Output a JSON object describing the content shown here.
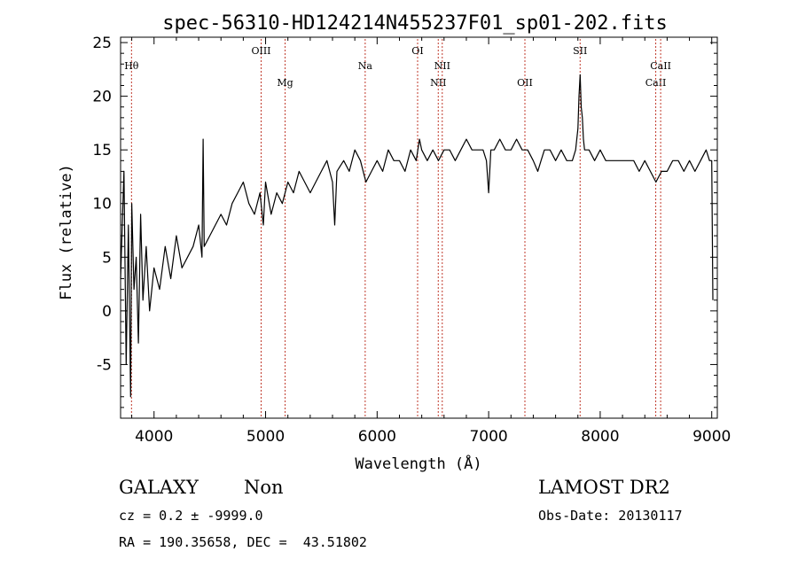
{
  "chart_data": {
    "type": "line",
    "title": "spec-56310-HD124214N455237F01_sp01-202.fits",
    "xlabel": "Wavelength (Å)",
    "ylabel": "Flux (relative)",
    "xlim": [
      3700,
      9050
    ],
    "ylim": [
      -10,
      25.5
    ],
    "xticks": [
      4000,
      5000,
      6000,
      7000,
      8000,
      9000
    ],
    "yticks": [
      -5,
      0,
      5,
      10,
      15,
      20,
      25
    ],
    "grid": false,
    "legend": "none",
    "line_color": "#000000",
    "marker_color": "#c0392b",
    "spectral_lines": [
      {
        "label": "Hθ",
        "x": 3798,
        "row": 1
      },
      {
        "label": "OIII",
        "x": 4960,
        "row": 0
      },
      {
        "label": "Mg",
        "x": 5175,
        "row": 2
      },
      {
        "label": "Na",
        "x": 5893,
        "row": 1
      },
      {
        "label": "OI",
        "x": 6363,
        "row": 0
      },
      {
        "label": "NII",
        "x": 6548,
        "row": 2
      },
      {
        "label": "NII",
        "x": 6584,
        "row": 1
      },
      {
        "label": "OII",
        "x": 7325,
        "row": 2
      },
      {
        "label": "SII",
        "x": 7820,
        "row": 0
      },
      {
        "label": "CaII",
        "x": 8498,
        "row": 2
      },
      {
        "label": "CaII",
        "x": 8542,
        "row": 1
      }
    ],
    "series": [
      {
        "x": [
          3700,
          3730,
          3750,
          3770,
          3790,
          3800,
          3820,
          3840,
          3860,
          3880,
          3900,
          3930,
          3960,
          4000,
          4050,
          4100,
          4150,
          4200,
          4250,
          4300,
          4350,
          4400,
          4430,
          4440,
          4450,
          4500,
          4550,
          4600,
          4650,
          4700,
          4750,
          4800,
          4850,
          4900,
          4950,
          4980,
          5000,
          5050,
          5100,
          5150,
          5200,
          5250,
          5300,
          5350,
          5400,
          5450,
          5500,
          5550,
          5600,
          5620,
          5640,
          5700,
          5750,
          5800,
          5850,
          5900,
          5950,
          6000,
          6050,
          6100,
          6150,
          6200,
          6250,
          6300,
          6350,
          6380,
          6400,
          6450,
          6500,
          6550,
          6600,
          6650,
          6700,
          6750,
          6800,
          6850,
          6900,
          6950,
          6980,
          7000,
          7020,
          7050,
          7100,
          7150,
          7200,
          7250,
          7300,
          7350,
          7400,
          7440,
          7470,
          7500,
          7550,
          7600,
          7650,
          7700,
          7750,
          7780,
          7800,
          7810,
          7820,
          7830,
          7840,
          7850,
          7860,
          7900,
          7950,
          8000,
          8050,
          8100,
          8150,
          8200,
          8250,
          8300,
          8350,
          8400,
          8450,
          8500,
          8550,
          8600,
          8650,
          8700,
          8750,
          8800,
          8850,
          8900,
          8950,
          8980,
          9000,
          9010
        ],
        "y": [
          3,
          13,
          -5,
          8,
          -8,
          10,
          2,
          5,
          -3,
          9,
          1,
          6,
          0,
          4,
          2,
          6,
          3,
          7,
          4,
          5,
          6,
          8,
          5,
          16,
          6,
          7,
          8,
          9,
          8,
          10,
          11,
          12,
          10,
          9,
          11,
          8,
          12,
          9,
          11,
          10,
          12,
          11,
          13,
          12,
          11,
          12,
          13,
          14,
          12,
          8,
          13,
          14,
          13,
          15,
          14,
          12,
          13,
          14,
          13,
          15,
          14,
          14,
          13,
          15,
          14,
          16,
          15,
          14,
          15,
          14,
          15,
          15,
          14,
          15,
          16,
          15,
          15,
          15,
          14,
          11,
          15,
          15,
          16,
          15,
          15,
          16,
          15,
          15,
          14,
          13,
          14,
          15,
          15,
          14,
          15,
          14,
          14,
          15,
          17,
          20,
          22,
          19,
          18,
          16,
          15,
          15,
          14,
          15,
          14,
          14,
          14,
          14,
          14,
          14,
          13,
          14,
          13,
          12,
          13,
          13,
          14,
          14,
          13,
          14,
          13,
          14,
          15,
          14,
          14,
          1
        ]
      }
    ]
  },
  "info": {
    "obj_class": "GALAXY",
    "subclass": "Non",
    "cz_line": "cz = 0.2 ± -9999.0",
    "radec_line": "RA = 190.35658, DEC =  43.51802",
    "survey": "LAMOST DR2",
    "obs_date": "Obs-Date: 20130117"
  }
}
